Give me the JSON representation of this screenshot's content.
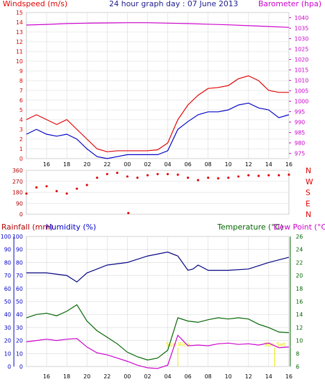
{
  "header": {
    "left": "Windspeed (m/s)",
    "center": "24 hour graph day : 07 June 2013",
    "right": "Barometer (hpa)"
  },
  "colors": {
    "frame": "#c8c8c8",
    "grid": "#d8d8d8",
    "axis_text": "#000000",
    "title": "#1a1a8c",
    "red": "#e00000",
    "darkred": "#b00000",
    "blue": "#0000c8",
    "navy": "#000080",
    "magenta": "#cc00cc",
    "green": "#006400",
    "yellow": "#e8e800"
  },
  "chart_data": [
    {
      "type": "line",
      "name": "wind-barometer",
      "x_ticks": [
        "16",
        "18",
        "20",
        "22",
        "00",
        "02",
        "04",
        "06",
        "08",
        "10",
        "12",
        "14",
        "16",
        "18",
        "20",
        "22",
        "00"
      ],
      "left_axis": {
        "label": "Windspeed (m/s)",
        "ticks": [
          "0",
          "1",
          "2",
          "3",
          "4",
          "5",
          "6",
          "7",
          "8",
          "9",
          "10",
          "11",
          "12",
          "13",
          "14",
          "15"
        ],
        "ylim": [
          0,
          15
        ]
      },
      "right_axis": {
        "label": "Barometer (hpa)",
        "ticks": [
          "975",
          "980",
          "985",
          "990",
          "995",
          "1000",
          "1005",
          "1010",
          "1015",
          "1020",
          "1025",
          "1030",
          "1035",
          "1040"
        ],
        "ylim": [
          972.5,
          1042.5
        ]
      },
      "series": [
        {
          "key": "gust",
          "color": "red",
          "x": [
            14,
            15,
            16,
            17,
            18,
            19,
            20,
            21,
            22,
            23,
            24,
            25,
            26,
            27,
            28,
            29,
            30,
            31,
            32,
            33,
            34,
            35,
            36,
            37,
            38,
            39,
            40
          ],
          "values": [
            4,
            4.5,
            4,
            3.5,
            4,
            3,
            2,
            1,
            0.7,
            0.8,
            0.8,
            0.8,
            0.8,
            0.9,
            1.6,
            4,
            5.5,
            6.5,
            7.2,
            7.3,
            7.5,
            8.2,
            8.5,
            8,
            7,
            6.8,
            6.8
          ]
        },
        {
          "key": "average",
          "color": "blue",
          "x": [
            14,
            15,
            16,
            17,
            18,
            19,
            20,
            21,
            22,
            23,
            24,
            25,
            26,
            27,
            28,
            29,
            30,
            31,
            32,
            33,
            34,
            35,
            36,
            37,
            38,
            39,
            40
          ],
          "values": [
            2.5,
            3,
            2.5,
            2.3,
            2.5,
            2,
            1,
            0.2,
            0,
            0.2,
            0.4,
            0.4,
            0.4,
            0.4,
            0.8,
            3,
            3.8,
            4.5,
            4.8,
            4.8,
            5,
            5.5,
            5.7,
            5.2,
            5,
            4.2,
            4.5
          ]
        },
        {
          "key": "barometer",
          "color": "magenta",
          "axis": "right",
          "x": [
            14,
            16,
            18,
            20,
            22,
            24,
            26,
            28,
            30,
            32,
            34,
            36,
            38,
            40
          ],
          "values": [
            1036.5,
            1036.8,
            1037.2,
            1037.4,
            1037.5,
            1037.6,
            1037.6,
            1037.4,
            1037.2,
            1036.9,
            1036.6,
            1036.2,
            1035.8,
            1035.4
          ]
        }
      ]
    },
    {
      "type": "scatter",
      "name": "wind-direction",
      "right_labels": [
        "N",
        "W",
        "S",
        "E",
        "N"
      ],
      "left_axis": {
        "ticks": [
          "0",
          "90",
          "180",
          "270",
          "360"
        ],
        "ylim": [
          0,
          360
        ]
      },
      "series": [
        {
          "key": "direction",
          "color": "red",
          "x": [
            14,
            15,
            16,
            17,
            18,
            19,
            20,
            21,
            22,
            23,
            24,
            25,
            26,
            27,
            28,
            29,
            30,
            31,
            32,
            33,
            34,
            35,
            36,
            37,
            38,
            39,
            40
          ],
          "values": [
            170,
            220,
            230,
            190,
            170,
            210,
            240,
            300,
            330,
            340,
            310,
            300,
            320,
            330,
            330,
            325,
            300,
            280,
            300,
            295,
            300,
            310,
            320,
            315,
            320,
            320,
            325
          ]
        },
        {
          "key": "direction-outlier",
          "color": "red",
          "x": [
            24.1
          ],
          "values": [
            10
          ]
        }
      ]
    },
    {
      "type": "line",
      "name": "rain-humidity-temperature",
      "headers": {
        "rainfall": "Rainfall (mm)",
        "humidity": "Humidity (%)",
        "temperature": "Temperature (°C)",
        "dewpoint": "Dew Point (°C)"
      },
      "left_axis_rain": {
        "ticks": [
          "0",
          "10",
          "20",
          "30",
          "40",
          "50",
          "60",
          "70",
          "80",
          "90",
          "100"
        ],
        "ylim": [
          0,
          100
        ]
      },
      "left_axis_humidity": {
        "ticks": [
          "0",
          "10",
          "20",
          "30",
          "40",
          "50",
          "60",
          "70",
          "80",
          "90",
          "100"
        ],
        "ylim": [
          0,
          100
        ]
      },
      "right_axis": {
        "label": "Temperature (°C)",
        "ticks": [
          "6",
          "8",
          "10",
          "12",
          "14",
          "16",
          "18",
          "20",
          "22",
          "24",
          "26"
        ],
        "ylim": [
          6,
          26
        ]
      },
      "annotations": [
        {
          "text": "Sun Rise",
          "x": 29
        },
        {
          "text": "Sun Set",
          "x": 38.6
        }
      ],
      "series": [
        {
          "key": "humidity",
          "color": "navy",
          "x": [
            14,
            16,
            18,
            19,
            20,
            21,
            22,
            24,
            26,
            28,
            29,
            30,
            30.5,
            31,
            32,
            34,
            36,
            38,
            40
          ],
          "values": [
            72,
            72,
            70,
            65,
            72,
            75,
            78,
            80,
            85,
            88,
            85,
            74,
            75,
            78,
            74,
            74,
            75,
            80,
            84
          ]
        },
        {
          "key": "temperature",
          "color": "green",
          "x": [
            14,
            15,
            16,
            17,
            18,
            19,
            20,
            21,
            22,
            23,
            24,
            25,
            26,
            27,
            28,
            29,
            30,
            31,
            32,
            33,
            34,
            35,
            36,
            37,
            38,
            39,
            40
          ],
          "values": [
            13.5,
            14,
            14.2,
            13.8,
            14.5,
            15.5,
            13,
            11.5,
            10.5,
            9.5,
            8.2,
            7.5,
            7,
            7.3,
            8.5,
            13.5,
            13,
            12.8,
            13.2,
            13.5,
            13.3,
            13.5,
            13.3,
            12.5,
            12,
            11.3,
            11.2
          ]
        },
        {
          "key": "dewpoint",
          "color": "magenta",
          "axis": "right",
          "x": [
            14,
            15,
            16,
            17,
            18,
            19,
            20,
            21,
            22,
            23,
            24,
            25,
            26,
            27,
            28,
            29,
            30,
            31,
            32,
            33,
            34,
            35,
            36,
            37,
            38,
            39,
            40
          ],
          "values": [
            9.8,
            10,
            10.2,
            10,
            10.2,
            10.3,
            9,
            8.1,
            7.8,
            7.3,
            6.8,
            6.2,
            5.8,
            5.7,
            6.2,
            10.8,
            9.2,
            9.3,
            9.2,
            9.5,
            9.6,
            9.4,
            9.5,
            9.3,
            9.6,
            8.9,
            9
          ]
        }
      ]
    }
  ]
}
